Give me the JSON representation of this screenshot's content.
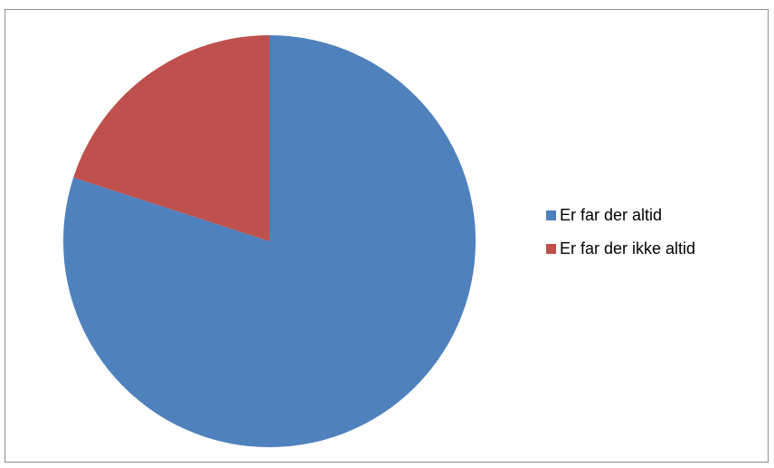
{
  "chart_data": {
    "type": "pie",
    "title": "",
    "categories": [
      "Er far der altid",
      "Er far der ikke altid"
    ],
    "values": [
      80,
      20
    ],
    "colors": [
      "#4f81bd",
      "#c0504d"
    ],
    "legend_position": "right"
  }
}
